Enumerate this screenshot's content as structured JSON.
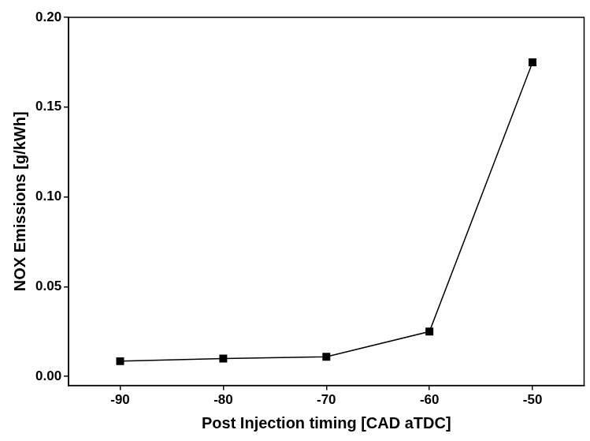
{
  "chart_data": {
    "type": "line",
    "x_label": "Post Injection timing [CAD aTDC]",
    "y_label": "NOX Emissions [g/kWh]",
    "series": [
      {
        "name": "NOX",
        "color": "#000000",
        "marker": "square",
        "line_style": "solid",
        "x": [
          -90,
          -80,
          -70,
          -60,
          -50
        ],
        "values": [
          0.0085,
          0.01,
          0.011,
          0.025,
          0.175
        ]
      }
    ],
    "xlim": [
      -95,
      -45
    ],
    "xticks": [
      -90,
      -80,
      -70,
      -60,
      -50
    ],
    "ylim": [
      -0.005,
      0.2
    ],
    "yticks": [
      {
        "value": 0,
        "label": "0.00"
      },
      0.05,
      {
        "value": 0.1,
        "label": "0.10"
      },
      0.15,
      {
        "value": 0.2,
        "label": "0.20"
      }
    ],
    "grid": false
  }
}
